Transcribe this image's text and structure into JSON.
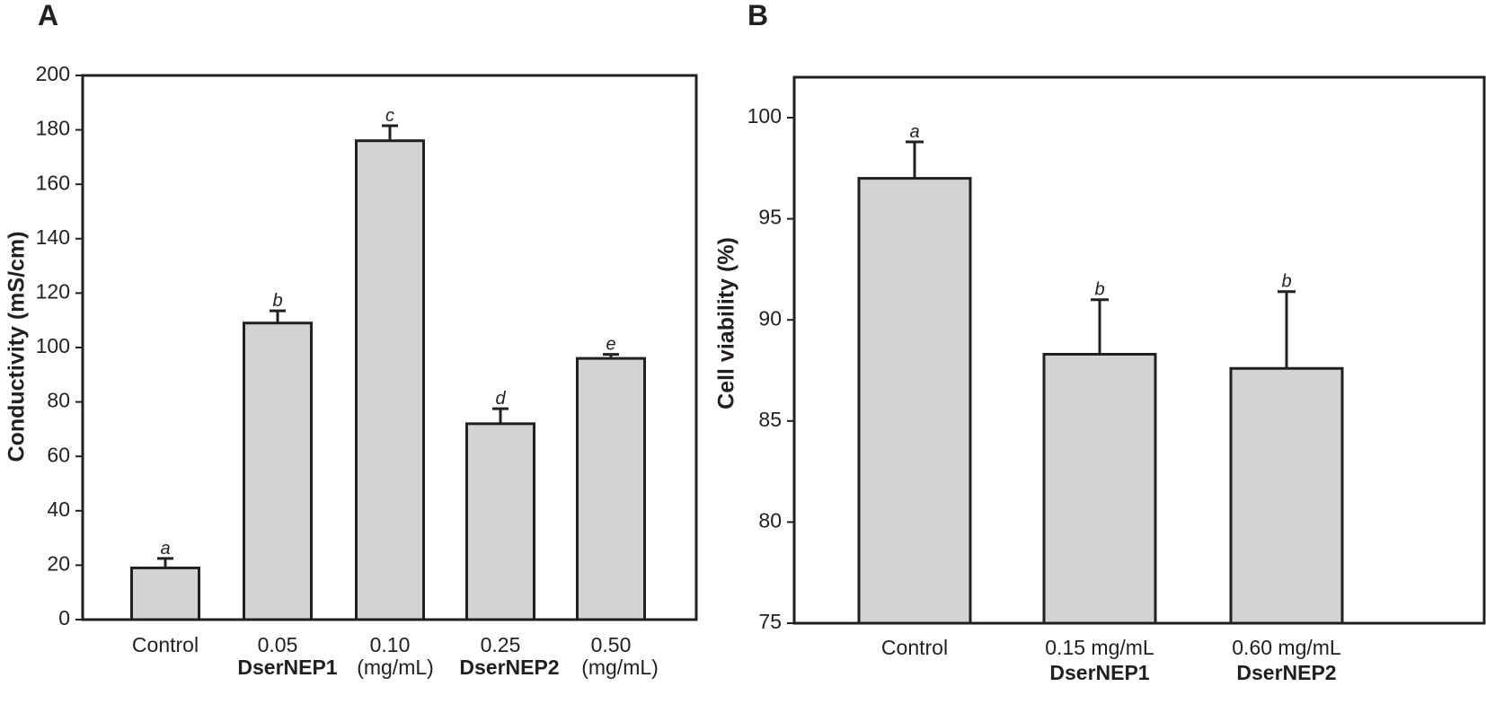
{
  "chart_data": [
    {
      "type": "bar",
      "panel": "A",
      "ylabel": "Conductivity (mS/cm)",
      "ylim": [
        0,
        200
      ],
      "yticks": [
        0,
        20,
        40,
        60,
        80,
        100,
        120,
        140,
        160,
        180,
        200
      ],
      "categories": [
        "Control",
        "0.05",
        "0.10",
        "0.25",
        "0.50"
      ],
      "values": [
        19,
        109,
        176,
        72,
        96
      ],
      "errors": [
        3.5,
        4.5,
        5.5,
        5.5,
        1.5
      ],
      "significance": [
        "a",
        "b",
        "c",
        "d",
        "e"
      ],
      "group_labels": [
        {
          "name": "DserNEP1",
          "unit": "(mg/mL)"
        },
        {
          "name": "DserNEP2",
          "unit": "(mg/mL)"
        }
      ],
      "colors": {
        "bar": "#d1d3d4",
        "stroke": "#231f20"
      }
    },
    {
      "type": "bar",
      "panel": "B",
      "ylabel": "Cell viability (%)",
      "ylim": [
        75,
        102
      ],
      "yticks": [
        75,
        80,
        85,
        90,
        95,
        100
      ],
      "categories": [
        "Control",
        "0.15 mg/mL",
        "0.60 mg/mL"
      ],
      "category_sublabels": [
        "",
        "DserNEP1",
        "DserNEP2"
      ],
      "values": [
        97,
        88.3,
        87.6
      ],
      "errors": [
        1.8,
        2.7,
        3.8
      ],
      "significance": [
        "a",
        "b",
        "b"
      ],
      "colors": {
        "bar": "#d1d3d4",
        "stroke": "#231f20"
      }
    }
  ]
}
